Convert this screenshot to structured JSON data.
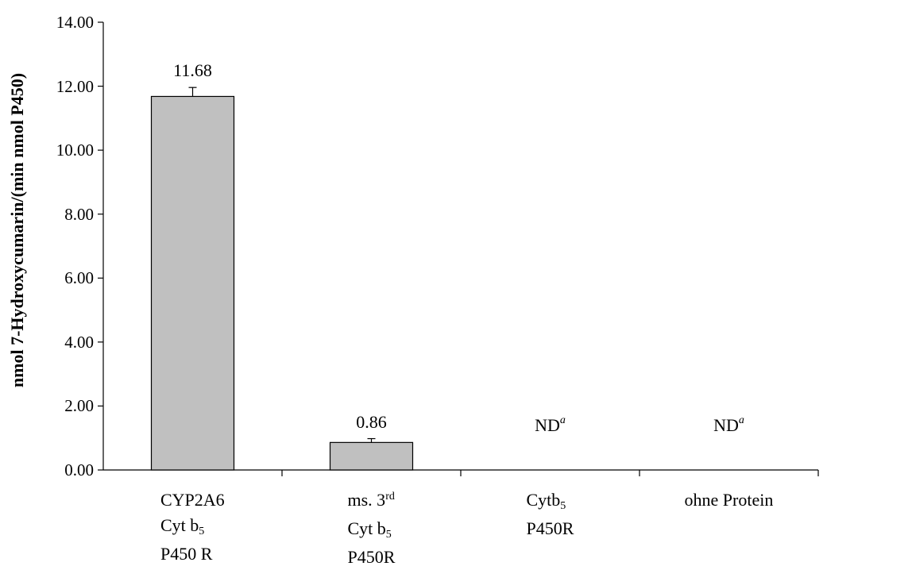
{
  "chart_data": {
    "type": "bar",
    "ylabel": "nmol 7-Hydroxycumarin/(min nmol P450)",
    "ylim": [
      0,
      14
    ],
    "yticks": [
      "0.00",
      "2.00",
      "4.00",
      "6.00",
      "8.00",
      "10.00",
      "12.00",
      "14.00"
    ],
    "grid": false,
    "bar_color": "#c0c0c0",
    "categories": [
      {
        "lines": [
          {
            "text": "CYP2A6"
          },
          {
            "text": "Cyt b",
            "sub": "5"
          },
          {
            "text": "P450 R"
          }
        ]
      },
      {
        "lines": [
          {
            "text": "ms. 3",
            "sup": "rd"
          },
          {
            "text": "Cyt b",
            "sub": "5"
          },
          {
            "text": "P450R"
          }
        ]
      },
      {
        "lines": [
          {
            "text": "Cytb",
            "sub": "5"
          },
          {
            "text": "P450R"
          }
        ]
      },
      {
        "lines": [
          {
            "text": "ohne Protein"
          }
        ]
      }
    ],
    "values": [
      11.68,
      0.86,
      null,
      null
    ],
    "errors": [
      0.28,
      0.12,
      null,
      null
    ],
    "data_labels": [
      {
        "text": "11.68"
      },
      {
        "text": "0.86"
      },
      {
        "text": "ND",
        "sup": "a"
      },
      {
        "text": "ND",
        "sup": "a"
      }
    ]
  }
}
